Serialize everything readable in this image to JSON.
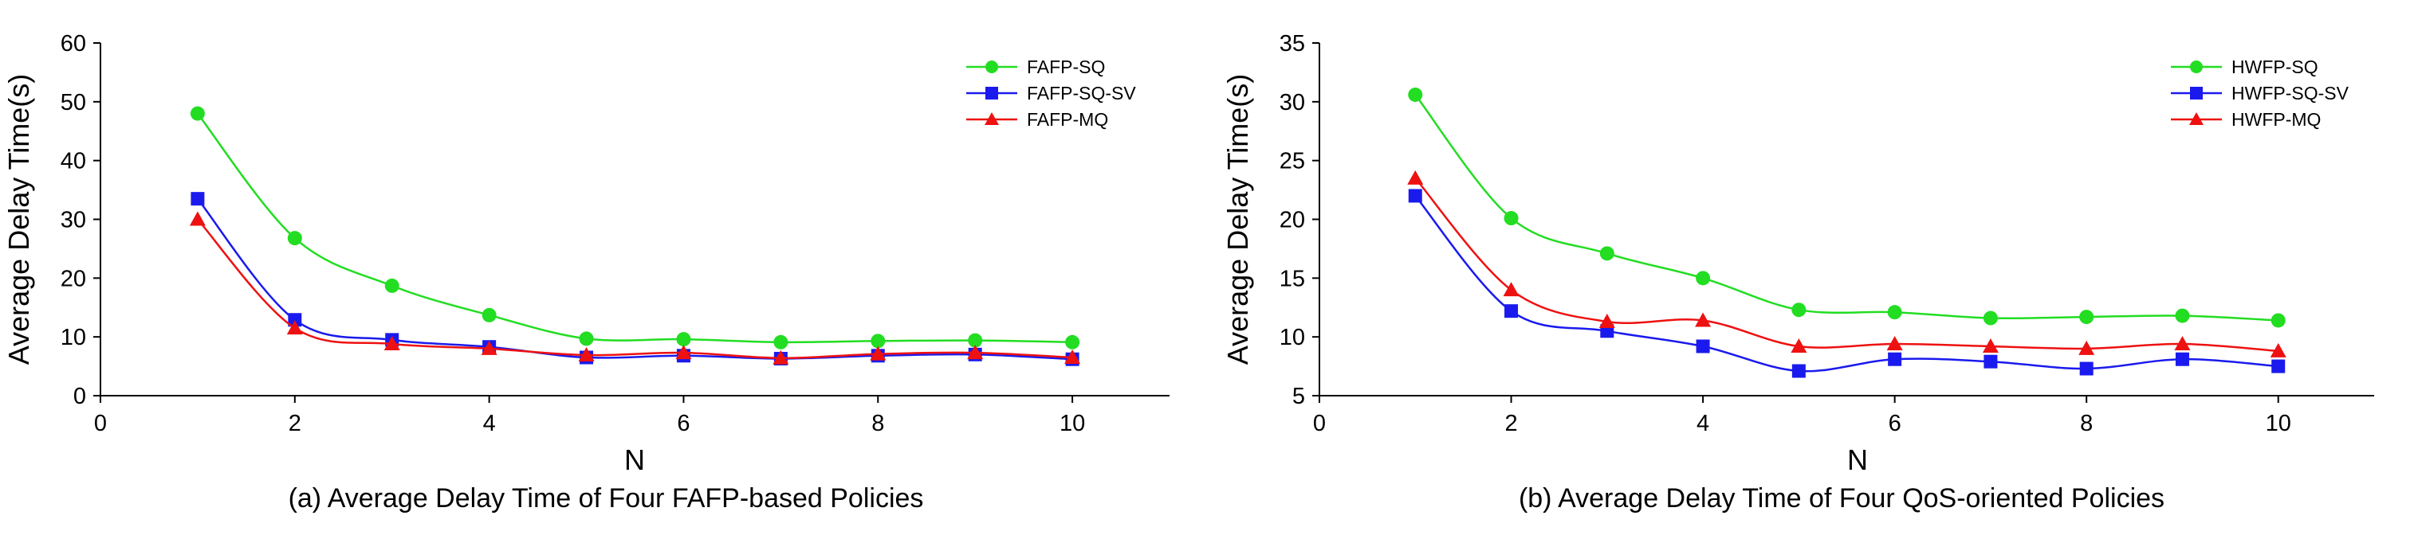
{
  "chart_data": [
    {
      "type": "line",
      "caption": "(a) Average Delay Time of Four FAFP-based Policies",
      "xlabel": "N",
      "ylabel": "Average Delay Time(s)",
      "xlim": [
        0,
        11
      ],
      "ylim": [
        0,
        60
      ],
      "xticks": [
        0,
        2,
        4,
        6,
        8,
        10
      ],
      "yticks": [
        0,
        10,
        20,
        30,
        40,
        50,
        60
      ],
      "grid": false,
      "legend_position": "top-right",
      "x": [
        1,
        2,
        3,
        4,
        5,
        6,
        7,
        8,
        9,
        10
      ],
      "series": [
        {
          "name": "FAFP-SQ",
          "color": "#22dd22",
          "marker": "circle",
          "values": [
            48,
            26.8,
            18.7,
            13.7,
            9.7,
            9.6,
            9.1,
            9.3,
            9.4,
            9.1
          ]
        },
        {
          "name": "FAFP-SQ-SV",
          "color": "#1a1aee",
          "marker": "square",
          "values": [
            33.5,
            12.9,
            9.5,
            8.3,
            6.5,
            6.8,
            6.3,
            6.8,
            7.0,
            6.2
          ]
        },
        {
          "name": "FAFP-MQ",
          "color": "#ee1111",
          "marker": "triangle",
          "values": [
            30,
            11.5,
            8.8,
            8.0,
            6.9,
            7.3,
            6.4,
            7.1,
            7.3,
            6.5
          ]
        }
      ]
    },
    {
      "type": "line",
      "caption": "(b) Average Delay Time of Four QoS-oriented Policies",
      "xlabel": "N",
      "ylabel": "Average Delay Time(s)",
      "xlim": [
        0,
        11
      ],
      "ylim": [
        5,
        35
      ],
      "xticks": [
        0,
        2,
        4,
        6,
        8,
        10
      ],
      "yticks": [
        5,
        10,
        15,
        20,
        25,
        30,
        35
      ],
      "grid": false,
      "legend_position": "top-right",
      "x": [
        1,
        2,
        3,
        4,
        5,
        6,
        7,
        8,
        9,
        10
      ],
      "series": [
        {
          "name": "HWFP-SQ",
          "color": "#22dd22",
          "marker": "circle",
          "values": [
            30.6,
            20.1,
            17.1,
            15.0,
            12.3,
            12.1,
            11.6,
            11.7,
            11.8,
            11.4
          ]
        },
        {
          "name": "HWFP-SQ-SV",
          "color": "#1a1aee",
          "marker": "square",
          "values": [
            22.0,
            12.2,
            10.5,
            9.2,
            7.1,
            8.1,
            7.9,
            7.3,
            8.1,
            7.5
          ]
        },
        {
          "name": "HWFP-MQ",
          "color": "#ee1111",
          "marker": "triangle",
          "values": [
            23.5,
            14.0,
            11.3,
            11.4,
            9.2,
            9.4,
            9.2,
            9.0,
            9.4,
            8.8
          ]
        }
      ]
    }
  ]
}
